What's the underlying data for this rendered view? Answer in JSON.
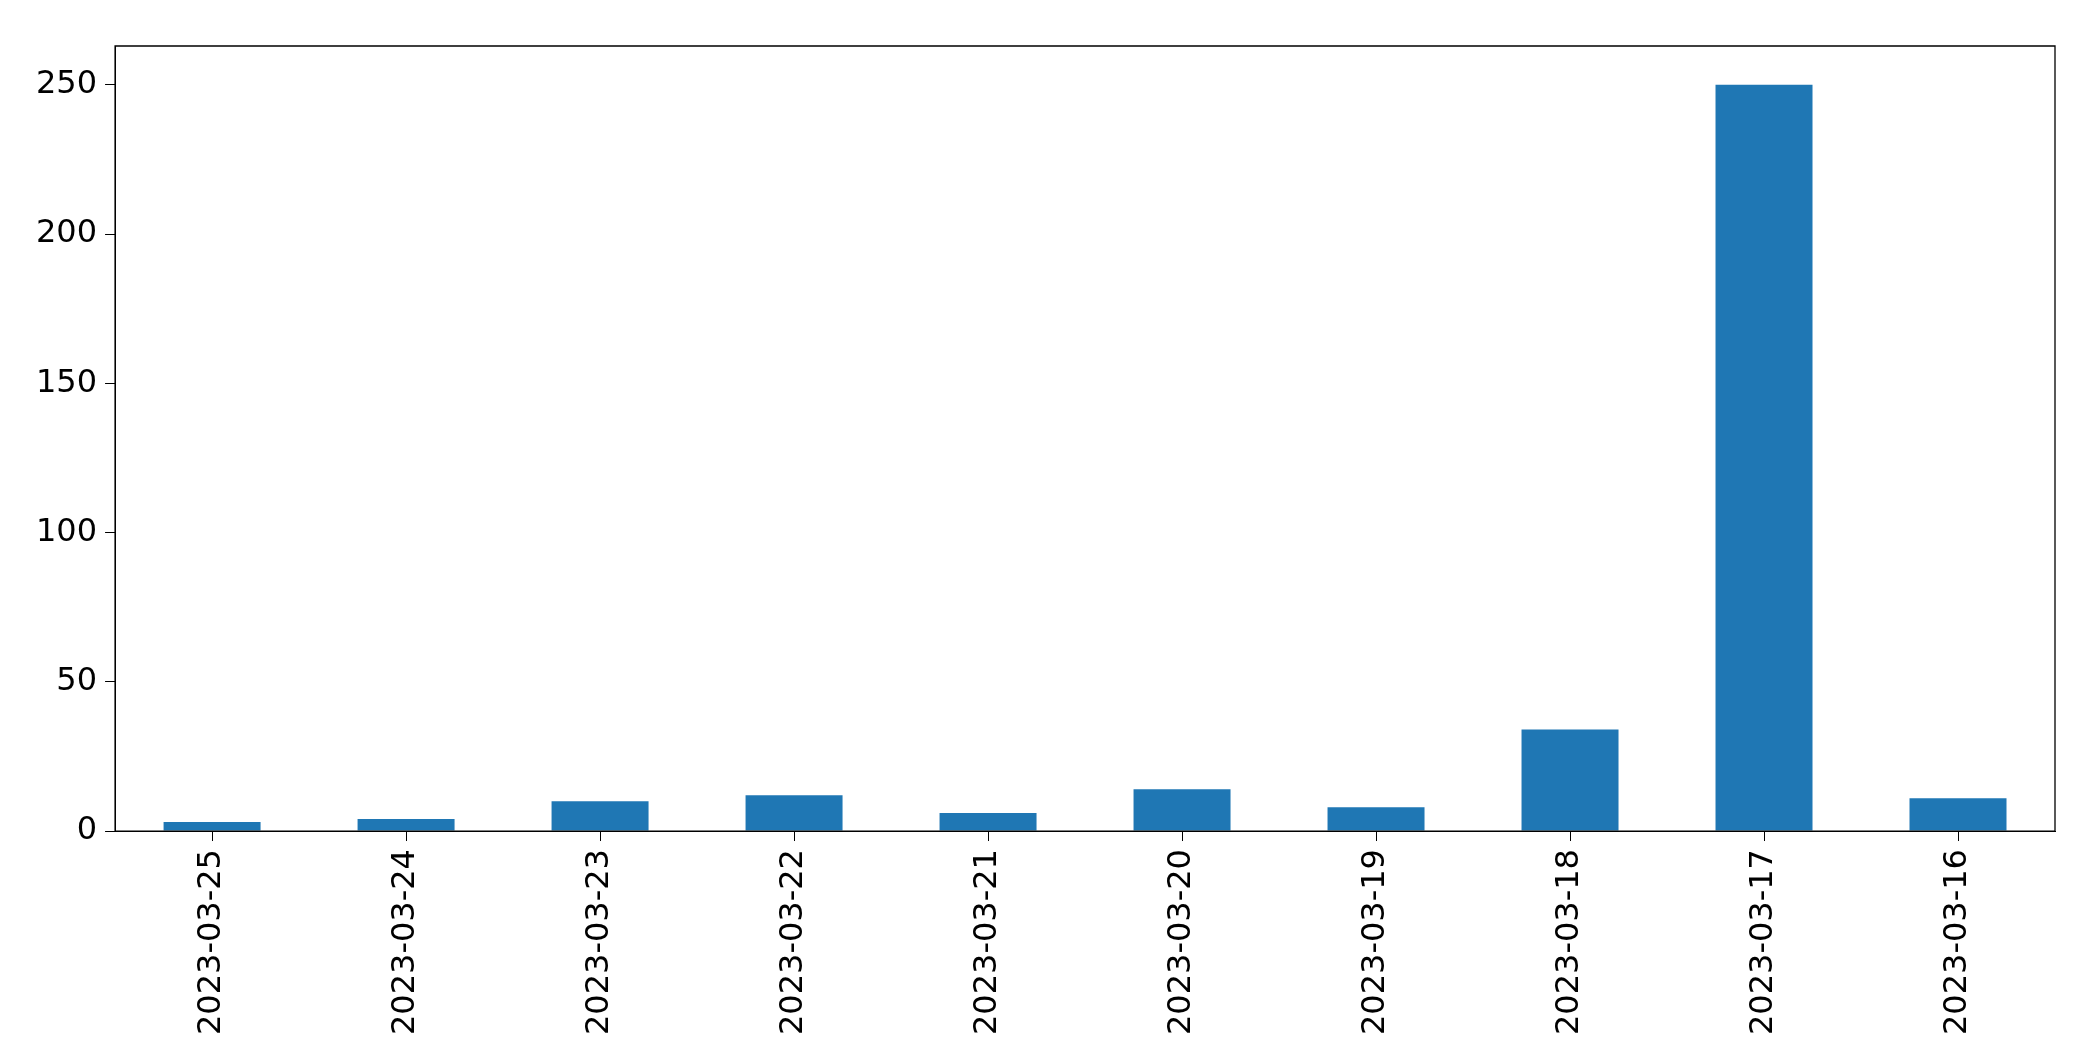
{
  "chart_data": {
    "type": "bar",
    "categories": [
      "2023-03-25",
      "2023-03-24",
      "2023-03-23",
      "2023-03-22",
      "2023-03-21",
      "2023-03-20",
      "2023-03-19",
      "2023-03-18",
      "2023-03-17",
      "2023-03-16"
    ],
    "values": [
      3,
      4,
      10,
      12,
      6,
      14,
      8,
      34,
      250,
      11
    ],
    "color": "#1f77b4",
    "ylim": [
      0,
      263
    ],
    "yticks": [
      0,
      50,
      100,
      150,
      200,
      250
    ],
    "grid": false,
    "legend": false
  }
}
